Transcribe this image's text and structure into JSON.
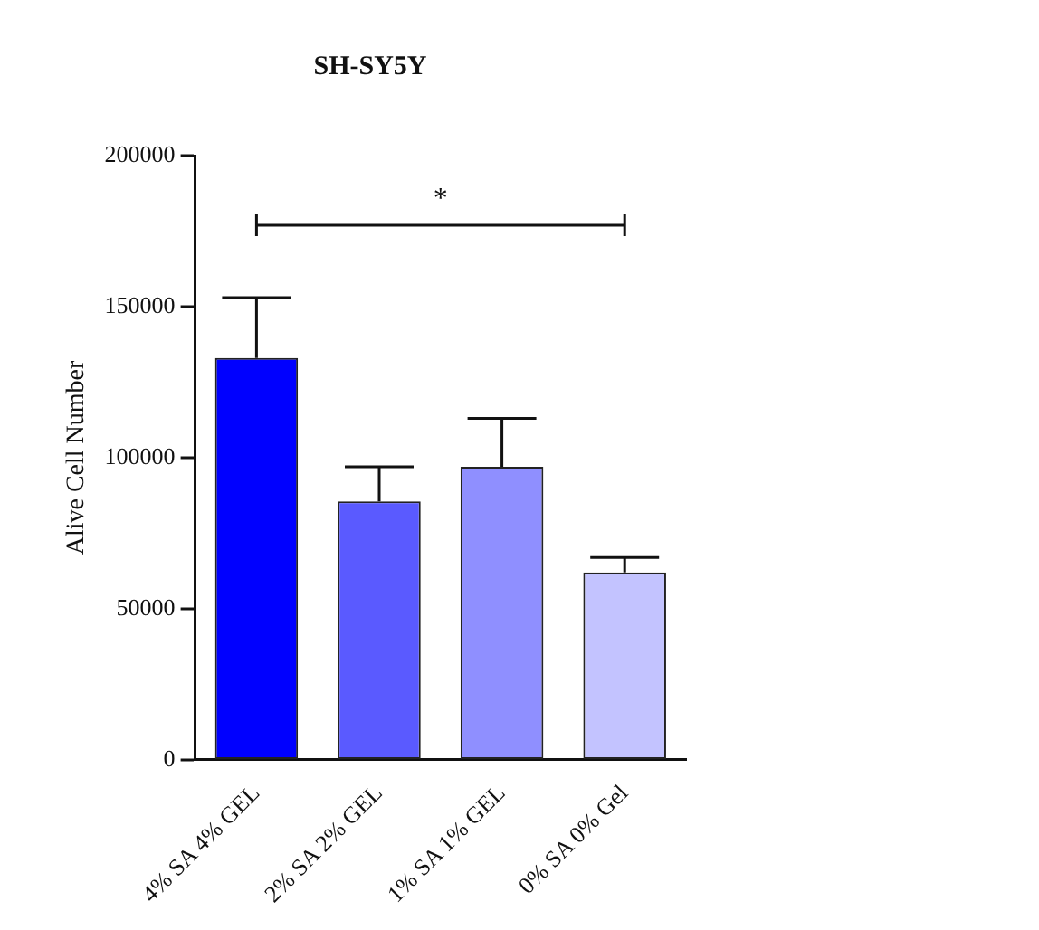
{
  "chart_data": {
    "type": "bar",
    "title": "SH-SY5Y",
    "ylabel": "Alive Cell Number",
    "categories": [
      "4% SA 4% GEL",
      "2% SA 2% GEL",
      "1% SA 1% GEL",
      "0% SA 0% Gel"
    ],
    "values": [
      133000,
      85500,
      97000,
      62000
    ],
    "errors": [
      [
        133000,
        153000
      ],
      [
        85500,
        97000
      ],
      [
        97000,
        113000
      ],
      [
        62000,
        67000
      ]
    ],
    "colors": [
      "#0000ff",
      "#5a5aff",
      "#8f8fff",
      "#c3c3ff"
    ],
    "ylim": [
      0,
      200000
    ],
    "yticks": [
      0,
      50000,
      100000,
      150000,
      200000
    ],
    "grid": false,
    "legend": false,
    "annotations": [
      "*"
    ]
  }
}
